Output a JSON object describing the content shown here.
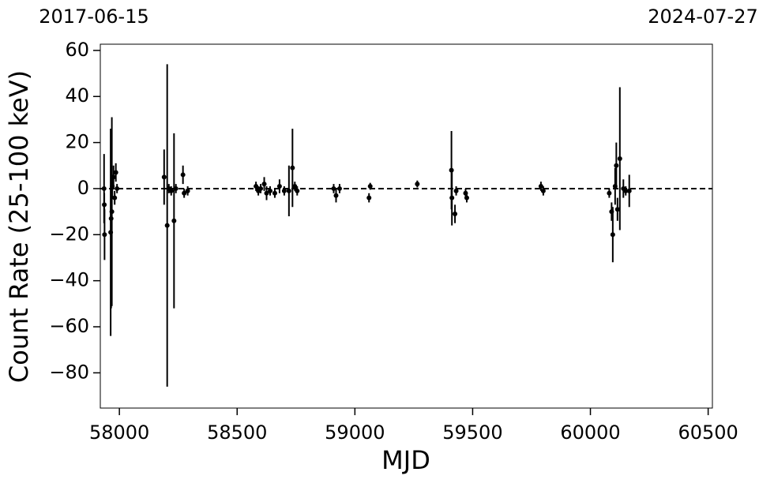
{
  "chart_data": {
    "type": "errorbar_scatter",
    "xlabel": "MJD",
    "ylabel": "Count Rate (25-100 keV)",
    "x": [
      57935,
      57936,
      57937,
      57963,
      57965,
      57968,
      57970,
      57975,
      57980,
      57985,
      57990,
      58190,
      58203,
      58210,
      58220,
      58232,
      58240,
      58270,
      58275,
      58290,
      58580,
      58590,
      58600,
      58615,
      58625,
      58640,
      58660,
      58680,
      58700,
      58720,
      58735,
      58745,
      58755,
      58910,
      58920,
      58935,
      59060,
      59065,
      59265,
      59410,
      59412,
      59425,
      59430,
      59470,
      59475,
      59790,
      59800,
      60080,
      60090,
      60095,
      60105,
      60110,
      60115,
      60125,
      60140,
      60150,
      60165
    ],
    "values": [
      0,
      -7,
      -20,
      -19,
      -13,
      -10,
      1,
      5,
      -4,
      7,
      0,
      5,
      -16,
      0,
      -1,
      -14,
      0,
      6,
      -2,
      -1,
      1,
      -1,
      0,
      2,
      -2,
      -1,
      -2,
      1,
      -1,
      -1,
      9,
      1,
      -1,
      0,
      -3,
      0,
      -4,
      1,
      2,
      8,
      -4,
      -11,
      -1,
      -2,
      -4,
      1,
      -1,
      -2,
      -10,
      -20,
      1,
      10,
      -9,
      13,
      0,
      -1,
      -1
    ],
    "errors": [
      15,
      5,
      11,
      45,
      39,
      41,
      5,
      5,
      3,
      4,
      2,
      12,
      70,
      2,
      2,
      38,
      2,
      4,
      2,
      2,
      2,
      2,
      2,
      3,
      3,
      2,
      2,
      3,
      2,
      11,
      17,
      2,
      2,
      2,
      3,
      2,
      2,
      1.5,
      1.5,
      17,
      12,
      4,
      2,
      2,
      2,
      2,
      2,
      2,
      4,
      12,
      8,
      10,
      5,
      31,
      4,
      2,
      7
    ],
    "color": "#000000",
    "reference_line": 0,
    "xlim": [
      57919,
      60518
    ],
    "ylim": [
      -95.3,
      62.7
    ],
    "xticks": [
      58000,
      58500,
      59000,
      59500,
      60000,
      60500
    ],
    "yticks": [
      {
        "value": -80,
        "label": "−80"
      },
      {
        "value": -60,
        "label": "−60"
      },
      {
        "value": -40,
        "label": "−40"
      },
      {
        "value": -20,
        "label": "−20"
      },
      0,
      20,
      40,
      60
    ],
    "x2ticks": [
      {
        "value": 57919,
        "label": "2017-06-15"
      },
      {
        "value": 60518,
        "label": "2024-07-27"
      }
    ]
  }
}
